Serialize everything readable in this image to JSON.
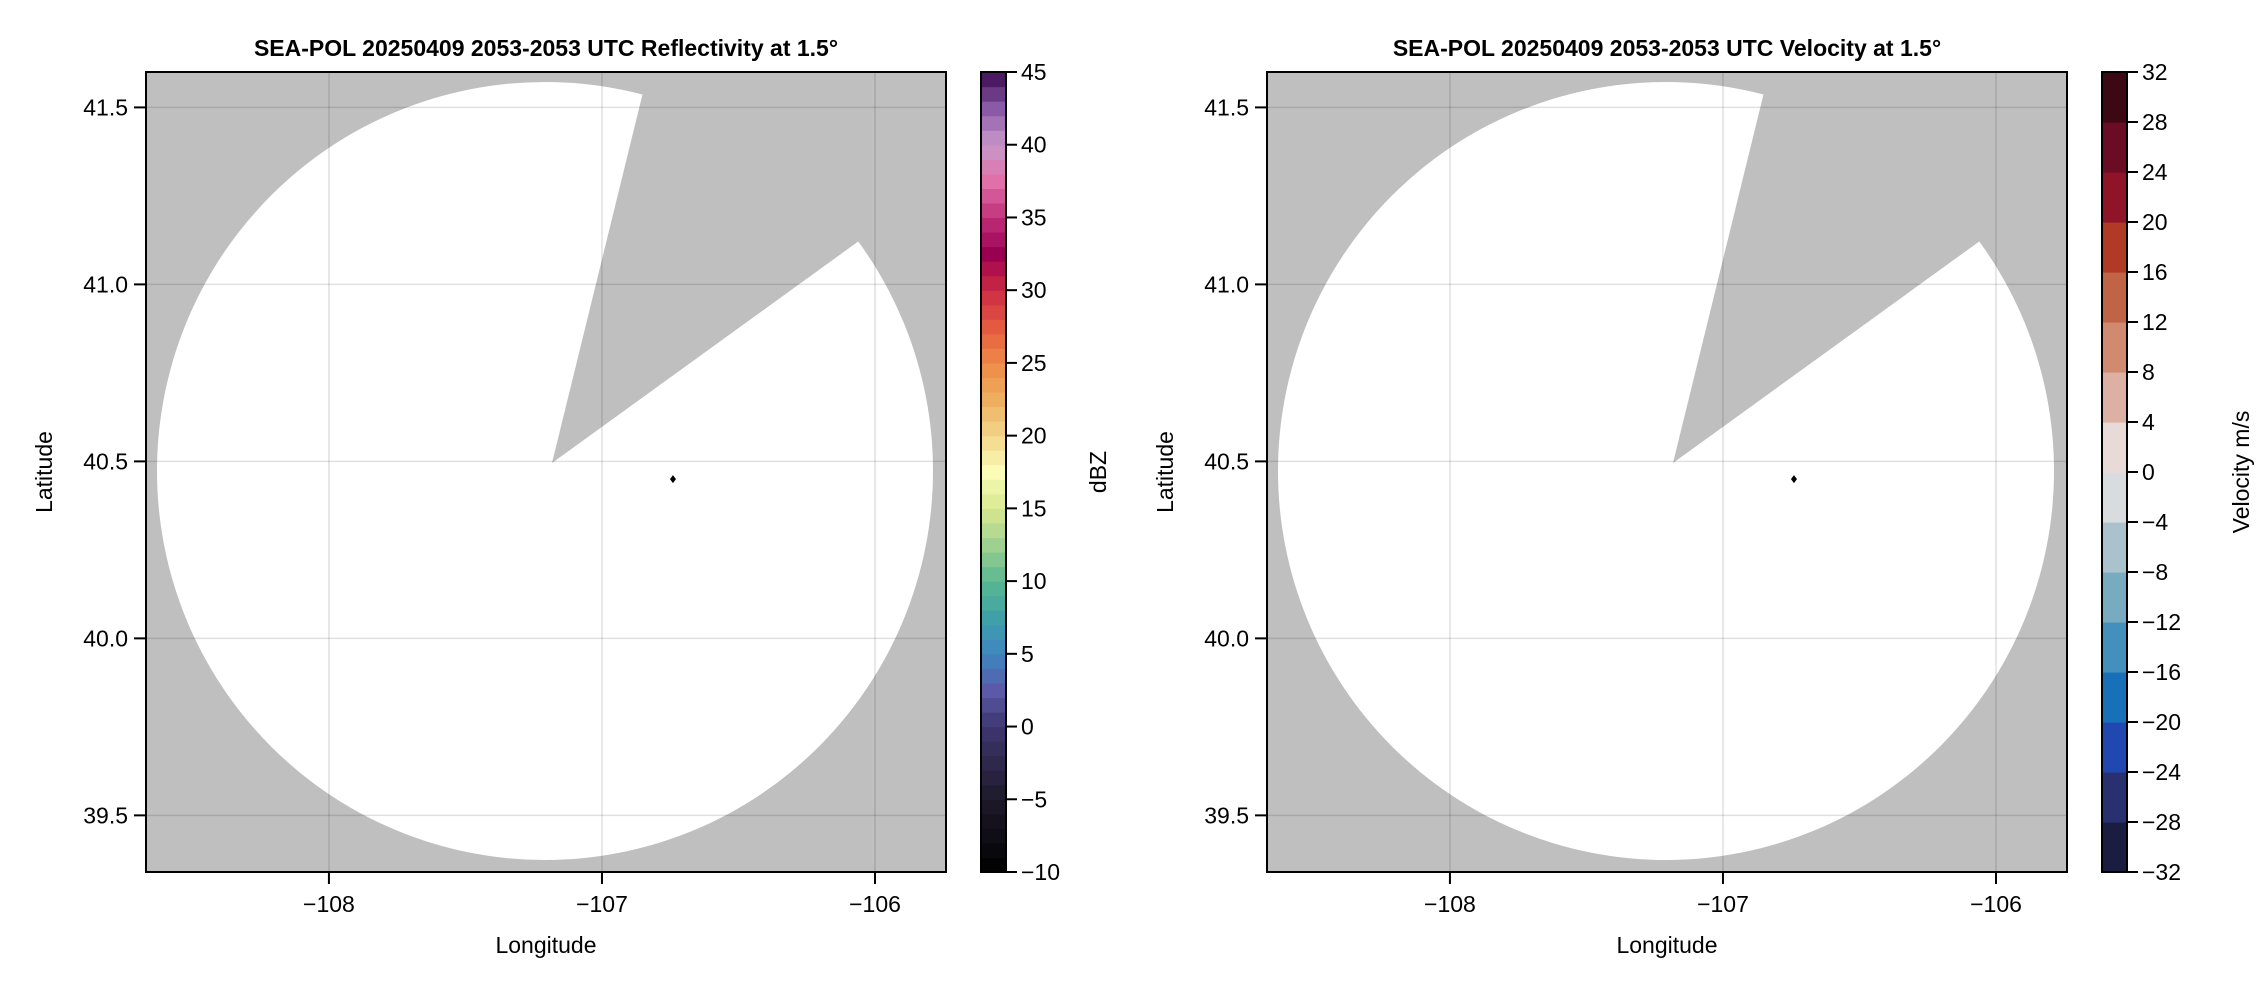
{
  "chart_data": [
    {
      "type": "heatmap",
      "title": "SEA-POL 20250409 2053-2053 UTC Reflectivity at 1.5°",
      "xlabel": "Longitude",
      "ylabel": "Latitude",
      "xlim": [
        -108.67,
        -105.74
      ],
      "ylim": [
        39.34,
        41.6
      ],
      "xticks": [
        -108,
        -107,
        -106
      ],
      "xtick_labels": [
        "−108",
        "−107",
        "−106"
      ],
      "yticks": [
        39.5,
        40.0,
        40.5,
        41.0,
        41.5
      ],
      "ytick_labels": [
        "39.5",
        "40.0",
        "40.5",
        "41.0",
        "41.5"
      ],
      "grid": true,
      "radar_site": {
        "lon": -106.74,
        "lat": 40.45
      },
      "colorbar": {
        "label": "dBZ",
        "range": [
          -10,
          45
        ],
        "step": 1,
        "ticks": [
          -10,
          -5,
          0,
          5,
          10,
          15,
          20,
          25,
          30,
          35,
          40,
          45
        ],
        "tick_labels": [
          "−10",
          "−5",
          "0",
          "5",
          "10",
          "15",
          "20",
          "25",
          "30",
          "35",
          "40",
          "45"
        ],
        "anchors": [
          [
            -10,
            "#000000"
          ],
          [
            -5,
            "#1e1a2a"
          ],
          [
            0,
            "#3e3670"
          ],
          [
            2.5,
            "#5a5aa8"
          ],
          [
            5,
            "#3f86c0"
          ],
          [
            7.5,
            "#3fa0a8"
          ],
          [
            10,
            "#5ab890"
          ],
          [
            12.5,
            "#a0d090"
          ],
          [
            15,
            "#d8e890"
          ],
          [
            17.5,
            "#fafcb8"
          ],
          [
            20,
            "#f2d68a"
          ],
          [
            22.5,
            "#eeae60"
          ],
          [
            25,
            "#ee8a48"
          ],
          [
            27.5,
            "#e45a40"
          ],
          [
            30,
            "#cc2a44"
          ],
          [
            32.5,
            "#9a0050"
          ],
          [
            35,
            "#c0307a"
          ],
          [
            37.5,
            "#e070a8"
          ],
          [
            40,
            "#c898c8"
          ],
          [
            42.5,
            "#8a5aa8"
          ],
          [
            45,
            "#3c0a50"
          ]
        ]
      },
      "no_data_color": "#bfbfbf",
      "echo_free_color": "#ffffff"
    },
    {
      "type": "heatmap",
      "title": "SEA-POL 20250409 2053-2053 UTC Velocity at 1.5°",
      "xlabel": "Longitude",
      "ylabel": "Latitude",
      "xlim": [
        -108.67,
        -105.74
      ],
      "ylim": [
        39.34,
        41.6
      ],
      "xticks": [
        -108,
        -107,
        -106
      ],
      "xtick_labels": [
        "−108",
        "−107",
        "−106"
      ],
      "yticks": [
        39.5,
        40.0,
        40.5,
        41.0,
        41.5
      ],
      "ytick_labels": [
        "39.5",
        "40.0",
        "40.5",
        "41.0",
        "41.5"
      ],
      "grid": true,
      "radar_site": {
        "lon": -106.74,
        "lat": 40.45
      },
      "colorbar": {
        "label": "Velocity m/s",
        "range": [
          -32,
          32
        ],
        "step": 4,
        "ticks": [
          -32,
          -28,
          -24,
          -20,
          -16,
          -12,
          -8,
          -4,
          0,
          4,
          8,
          12,
          16,
          20,
          24,
          28,
          32
        ],
        "tick_labels": [
          "−32",
          "−28",
          "−24",
          "−20",
          "−16",
          "−12",
          "−8",
          "−4",
          "0",
          "4",
          "8",
          "12",
          "16",
          "20",
          "24",
          "28",
          "32"
        ],
        "band_colors": [
          "#1a1c40",
          "#283070",
          "#2048b0",
          "#1870b8",
          "#4490bc",
          "#78aac0",
          "#aac2cc",
          "#d8dcde",
          "#e8dad6",
          "#dcb0a2",
          "#d08a70",
          "#c06448",
          "#b03a26",
          "#901428",
          "#6a0c24",
          "#3c0814"
        ]
      },
      "no_data_color": "#bfbfbf",
      "echo_free_color": "#ffffff"
    }
  ]
}
